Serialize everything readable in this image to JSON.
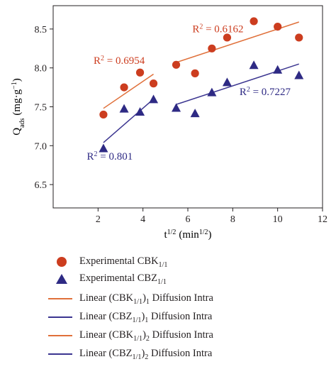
{
  "chart_data": {
    "type": "scatter",
    "xlabel_base": "t",
    "xlabel_sup": "1/2",
    "xlabel_unit_base": "(min",
    "xlabel_unit_sup": "1/2",
    "xlabel_unit_close": ")",
    "ylabel_base": "Q",
    "ylabel_sub": "ads",
    "ylabel_unit_base": "(mg·g",
    "ylabel_unit_sup": "−1",
    "ylabel_unit_close": ")",
    "xlim": [
      0,
      12
    ],
    "ylim": [
      6.2,
      8.8
    ],
    "xticks": [
      2,
      4,
      6,
      8,
      10,
      12
    ],
    "yticks": [
      6.5,
      7.0,
      7.5,
      8.0,
      8.5
    ],
    "ytick_labels": [
      "6.5",
      "7.0",
      "7.5",
      "8.0",
      "8.5"
    ],
    "grid": false,
    "legend_position": "below",
    "series": [
      {
        "name_base": "Experimental CBK",
        "name_sub": "1/1",
        "marker": "circle",
        "color": "#cc3d1f",
        "x": [
          2.24,
          3.16,
          3.87,
          4.47,
          5.48,
          6.32,
          7.07,
          7.75,
          8.94,
          10.0,
          10.95
        ],
        "y": [
          7.4,
          7.75,
          7.94,
          7.8,
          8.04,
          7.93,
          8.25,
          8.39,
          8.6,
          8.53,
          8.39
        ]
      },
      {
        "name_base": "Experimental CBZ",
        "name_sub": "1/1",
        "marker": "triangle",
        "color": "#2e2a84",
        "x": [
          2.24,
          3.16,
          3.87,
          4.47,
          5.48,
          6.32,
          7.07,
          7.75,
          8.94,
          10.0,
          10.95
        ],
        "y": [
          6.96,
          7.47,
          7.43,
          7.59,
          7.48,
          7.41,
          7.68,
          7.81,
          8.03,
          7.97,
          7.9
        ]
      }
    ],
    "fits": [
      {
        "legend_pre": "Linear (CBK",
        "legend_sub1": "1/1",
        "legend_mid": ")",
        "legend_sub2": "1",
        "legend_post": " Diffusion Intra",
        "color": "#e0703a",
        "x": [
          2.24,
          4.47
        ],
        "y": [
          7.48,
          7.92
        ]
      },
      {
        "legend_pre": "Linear (CBZ",
        "legend_sub1": "1/1",
        "legend_mid": ")",
        "legend_sub2": "1",
        "legend_post": " Diffusion Intra",
        "color": "#3b3590",
        "x": [
          2.24,
          4.47
        ],
        "y": [
          7.04,
          7.6
        ]
      },
      {
        "legend_pre": "Linear (CBK",
        "legend_sub1": "1/1",
        "legend_mid": ")",
        "legend_sub2": "2",
        "legend_post": " Diffusion Intra",
        "color": "#e0703a",
        "x": [
          5.48,
          10.95
        ],
        "y": [
          8.07,
          8.59
        ]
      },
      {
        "legend_pre": "Linear (CBZ",
        "legend_sub1": "1/1",
        "legend_mid": ")",
        "legend_sub2": "2",
        "legend_post": " Diffusion Intra",
        "color": "#3b3590",
        "x": [
          5.48,
          10.95
        ],
        "y": [
          7.53,
          8.05
        ]
      }
    ],
    "annotations": [
      {
        "text_pre": "R",
        "text_sup": "2",
        "text_post": " = 0.6954",
        "color": "#cc3d1f",
        "x": 1.8,
        "y": 8.05
      },
      {
        "text_pre": "R",
        "text_sup": "2",
        "text_post": " = 0.801",
        "color": "#2e2a84",
        "x": 1.5,
        "y": 6.82
      },
      {
        "text_pre": "R",
        "text_sup": "2",
        "text_post": " = 0.6162",
        "color": "#cc3d1f",
        "x": 6.2,
        "y": 8.46
      },
      {
        "text_pre": "R",
        "text_sup": "2",
        "text_post": " = 0.7227",
        "color": "#2e2a84",
        "x": 8.3,
        "y": 7.65
      }
    ]
  }
}
